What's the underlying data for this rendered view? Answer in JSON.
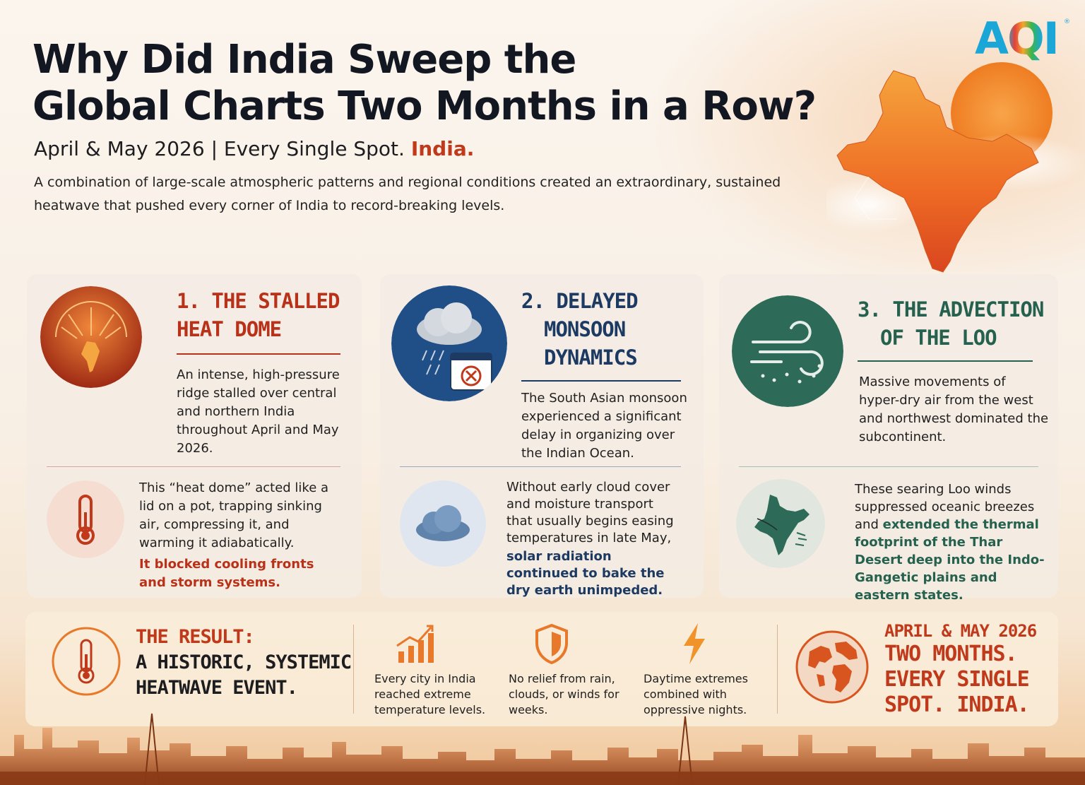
{
  "header": {
    "title_line1": "Why Did India Sweep the",
    "title_line2": "Global Charts Two Months in a Row?",
    "subtitle": "April & May 2026 | Every Single Spot.",
    "subtitle_accent": "India.",
    "intro": "A combination of large-scale atmospheric patterns and regional conditions created an extraordinary, sustained heatwave that pushed every corner of India to record-breaking levels."
  },
  "logo": {
    "text": "AQI",
    "mark": "®"
  },
  "cards": [
    {
      "title_line1": "1. THE STALLED",
      "title_line2": "HEAT DOME",
      "summary": "An intense, high-pressure ridge stalled over central and northern India throughout April and May 2026.",
      "detail": "This “heat dome” acted like a lid on a pot, trapping sinking air, compressing it, and warming it adiabatically.",
      "highlight": "It blocked cooling fronts and storm systems.",
      "accent": "#b8321a"
    },
    {
      "title_line1": "2. DELAYED",
      "title_line2": "MONSOON",
      "title_line3": "DYNAMICS",
      "summary": "The South Asian monsoon experienced a significant delay in organizing over the Indian Ocean.",
      "detail": "Without early cloud cover and moisture transport that usually begins easing temperatures in late May,",
      "highlight": "solar radiation continued to bake the dry earth unimpeded.",
      "accent": "#1d3a63"
    },
    {
      "title_line1": "3. THE ADVECTION",
      "title_line2": "OF THE LOO",
      "summary": "Massive movements of hyper-dry air from the west and northwest dominated the subcontinent.",
      "detail_pre": "These searing Loo winds suppressed oceanic breezes and",
      "highlight": "extended the thermal footprint of the Thar Desert deep into the Indo-Gangetic plains and eastern states.",
      "accent": "#25614e"
    }
  ],
  "result": {
    "label": "THE RESULT:",
    "headline_line1": "A HISTORIC, SYSTEMIC",
    "headline_line2": "HEATWAVE EVENT.",
    "stats": [
      {
        "icon": "rising-chart-icon",
        "text": "Every city in India reached extreme temperature levels."
      },
      {
        "icon": "shield-icon",
        "text": "No relief from rain, clouds, or winds for weeks."
      },
      {
        "icon": "lightning-icon",
        "text": "Daytime extremes combined with oppressive nights."
      }
    ],
    "final_line1": "APRIL & MAY 2026",
    "final_line2": "TWO MONTHS.",
    "final_line3": "EVERY SINGLE",
    "final_line4": "SPOT. INDIA."
  },
  "colors": {
    "red": "#c0391b",
    "navy": "#1d3a63",
    "green": "#25614e",
    "orange": "#e8782a"
  }
}
